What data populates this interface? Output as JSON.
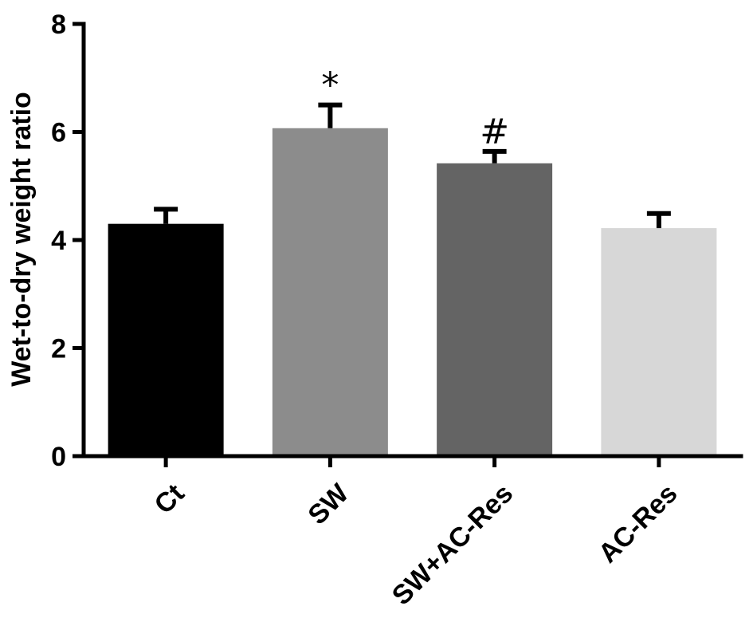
{
  "chart_data": {
    "type": "bar",
    "title": "",
    "xlabel": "",
    "ylabel": "Wet-to-dry weight ratio",
    "ylim": [
      0,
      8
    ],
    "yticks": [
      0,
      2,
      4,
      6,
      8
    ],
    "grid": false,
    "categories": [
      "Ct",
      "SW",
      "SW+AC-Res",
      "AC-Res"
    ],
    "values": [
      4.3,
      6.07,
      5.42,
      4.22
    ],
    "errors": [
      0.27,
      0.43,
      0.22,
      0.27
    ],
    "colors": [
      "#000000",
      "#8c8c8c",
      "#646464",
      "#d7d7d7"
    ],
    "annotations": [
      "",
      "*",
      "#",
      ""
    ]
  }
}
